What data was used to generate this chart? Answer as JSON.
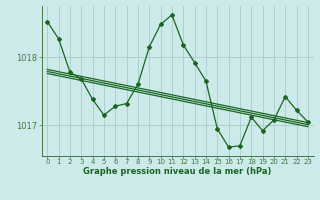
{
  "title": "Graphe pression niveau de la mer (hPa)",
  "background_color": "#cceaea",
  "grid_color": "#aacccc",
  "line_color": "#1a6620",
  "x_ticks": [
    0,
    1,
    2,
    3,
    4,
    5,
    6,
    7,
    8,
    9,
    10,
    11,
    12,
    13,
    14,
    15,
    16,
    17,
    18,
    19,
    20,
    21,
    22,
    23
  ],
  "y_ticks": [
    1017,
    1018
  ],
  "ylim": [
    1016.55,
    1018.75
  ],
  "xlim": [
    -0.5,
    23.5
  ],
  "main_series": [
    1018.52,
    1018.27,
    1017.78,
    1017.68,
    1017.38,
    1017.15,
    1017.28,
    1017.32,
    1017.6,
    1018.15,
    1018.48,
    1018.62,
    1018.18,
    1017.92,
    1017.65,
    1016.95,
    1016.68,
    1016.7,
    1017.12,
    1016.92,
    1017.08,
    1017.42,
    1017.22,
    1017.05
  ],
  "trend_lines": [
    [
      [
        0,
        1017.82
      ],
      [
        23,
        1017.04
      ]
    ],
    [
      [
        0,
        1017.79
      ],
      [
        23,
        1017.01
      ]
    ],
    [
      [
        0,
        1017.76
      ],
      [
        23,
        1016.98
      ]
    ]
  ],
  "tick_fontsize": 5.0,
  "label_fontsize": 6.0,
  "spine_color": "#447744"
}
